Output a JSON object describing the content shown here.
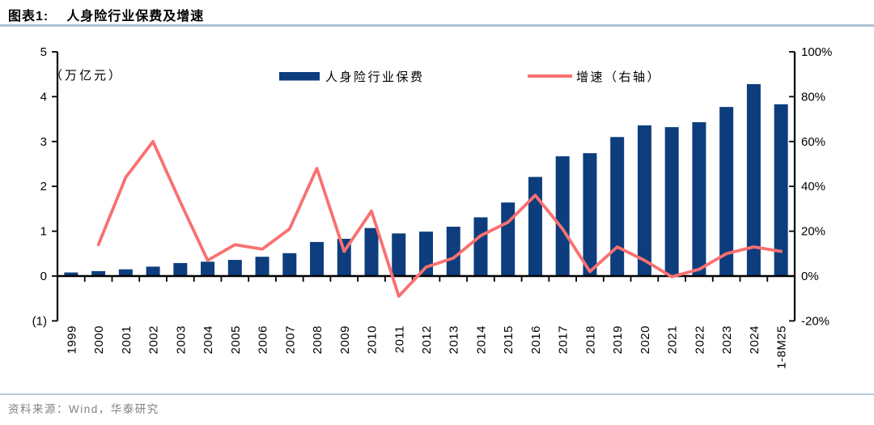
{
  "header": {
    "figure_label": "图表1:",
    "title": "人身险行业保费及增速"
  },
  "footer": {
    "source": "资料来源：Wind，华泰研究"
  },
  "colors": {
    "bar": "#0d3d7d",
    "line": "#f97070",
    "separator": "#adc2d5",
    "axis": "#000000",
    "source_text": "#828282"
  },
  "chart_data": {
    "type": "bar+line combo",
    "unit_label": "（万亿元）",
    "legend_position": "top",
    "grid": false,
    "categories": [
      "1999",
      "2000",
      "2001",
      "2002",
      "2003",
      "2004",
      "2005",
      "2006",
      "2007",
      "2008",
      "2009",
      "2010",
      "2011",
      "2012",
      "2013",
      "2014",
      "2015",
      "2016",
      "2017",
      "2018",
      "2019",
      "2020",
      "2021",
      "2022",
      "2023",
      "2024",
      "1-8M25"
    ],
    "series": [
      {
        "name": "人身险行业保费",
        "type": "bar",
        "axis": "left",
        "color": "#0d3d7d",
        "values": [
          0.08,
          0.11,
          0.15,
          0.21,
          0.29,
          0.32,
          0.36,
          0.43,
          0.51,
          0.76,
          0.83,
          1.07,
          0.95,
          0.99,
          1.1,
          1.31,
          1.64,
          2.21,
          2.67,
          2.74,
          3.1,
          3.36,
          3.32,
          3.43,
          3.77,
          4.28,
          3.83
        ]
      },
      {
        "name": "增速（右轴）",
        "type": "line",
        "axis": "right",
        "color": "#f97070",
        "values": [
          null,
          14,
          44,
          60,
          33,
          7,
          14,
          12,
          21,
          48,
          11,
          29,
          -9,
          4,
          8,
          18,
          24,
          36,
          21,
          2,
          13,
          7,
          -0.3,
          3,
          10,
          13,
          11
        ]
      }
    ],
    "left_axis": {
      "min": -1,
      "max": 5,
      "tick_step": 1,
      "tick_labels": [
        "5",
        "4",
        "3",
        "2",
        "1",
        "0",
        "(1)"
      ],
      "tick_values": [
        5,
        4,
        3,
        2,
        1,
        0,
        -1
      ]
    },
    "right_axis": {
      "min": -20,
      "max": 100,
      "tick_step": 20,
      "tick_labels": [
        "100%",
        "80%",
        "60%",
        "40%",
        "20%",
        "0%",
        "-20%"
      ],
      "tick_values": [
        100,
        80,
        60,
        40,
        20,
        0,
        -20
      ]
    }
  }
}
